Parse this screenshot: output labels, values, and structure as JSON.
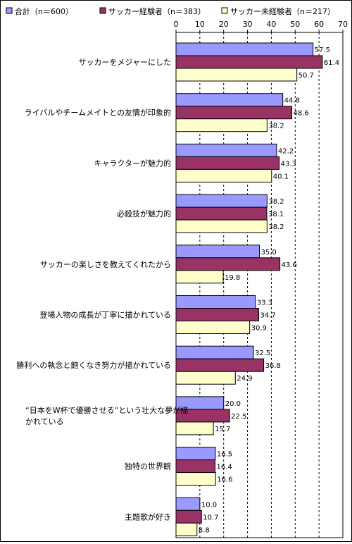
{
  "chart_data": {
    "type": "bar",
    "orientation": "horizontal",
    "xlim": [
      0,
      70
    ],
    "x_ticks": [
      "0",
      "10",
      "20",
      "30",
      "40",
      "50",
      "60",
      "70"
    ],
    "grid": "vertical dashed",
    "legend_position": "top",
    "categories": [
      [
        "サッカーをメジャーにした"
      ],
      [
        "ライバルやチームメイトとの友情が印象的"
      ],
      [
        "キャラクターが魅力的"
      ],
      [
        "必殺技が魅力的"
      ],
      [
        "サッカーの楽しさを教えてくれたから"
      ],
      [
        "登場人物の成長が丁寧に描かれている"
      ],
      [
        "勝利への執念と飽くなき努力が描かれている"
      ],
      [
        "“日本をW杯で優勝させる”という壮大な夢が描",
        "かれている"
      ],
      [
        "独特の世界観"
      ],
      [
        "主題歌が好き"
      ]
    ],
    "series": [
      {
        "name": "合計（n＝600）",
        "color": "#9999ff",
        "values": [
          57.5,
          44.8,
          42.2,
          38.2,
          35.0,
          33.3,
          32.5,
          20.0,
          16.5,
          10.0
        ]
      },
      {
        "name": "サッカー経験者（n＝383）",
        "color": "#993366",
        "values": [
          61.4,
          48.6,
          43.3,
          38.1,
          43.6,
          34.7,
          36.8,
          22.5,
          16.4,
          10.7
        ]
      },
      {
        "name": "サッカー未経験者（n＝217）",
        "color": "#ffffcc",
        "values": [
          50.7,
          38.2,
          40.1,
          38.2,
          19.8,
          30.9,
          24.9,
          15.7,
          16.6,
          8.8
        ]
      }
    ]
  }
}
